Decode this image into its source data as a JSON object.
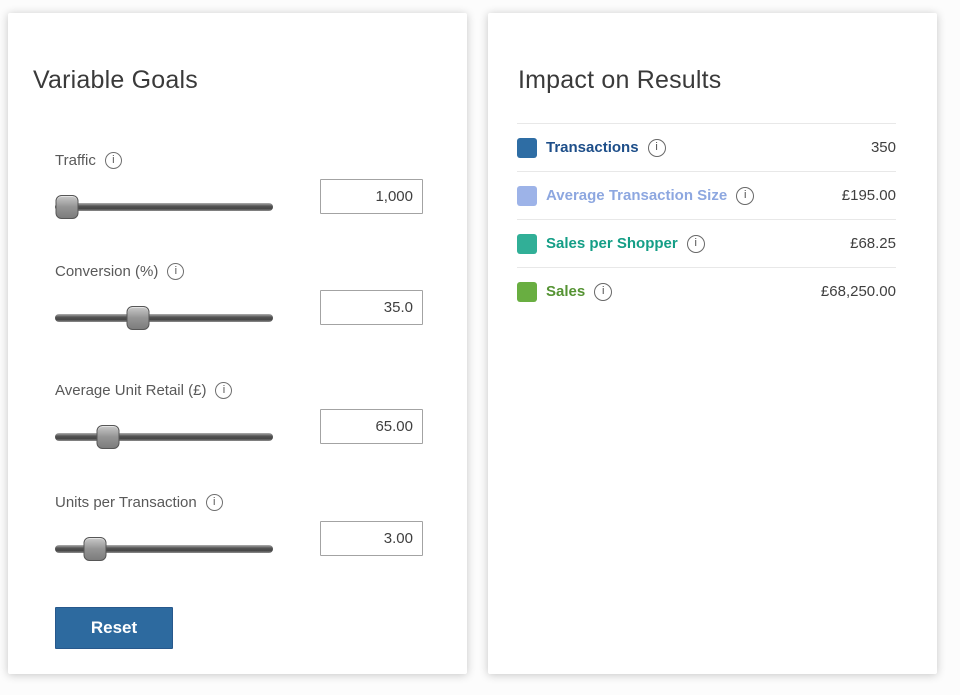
{
  "glyphs": {
    "info": "i"
  },
  "left_panel": {
    "title": "Variable Goals",
    "reset_label": "Reset",
    "sliders": [
      {
        "label": "Traffic",
        "value": "1,000",
        "handle_percent": 5.5
      },
      {
        "label": "Conversion (%)",
        "value": "35.0",
        "handle_percent": 38
      },
      {
        "label": "Average Unit Retail (£)",
        "value": "65.00",
        "handle_percent": 24.5
      },
      {
        "label": "Units per Transaction",
        "value": "3.00",
        "handle_percent": 18.5
      }
    ]
  },
  "right_panel": {
    "title": "Impact on Results",
    "rows": [
      {
        "label": "Transactions",
        "value": "350",
        "swatch_color": "#2e6da4",
        "label_color": "#1d4e89"
      },
      {
        "label": "Average Transaction Size",
        "value": "£195.00",
        "swatch_color": "#9db3e8",
        "label_color": "#8da7e0"
      },
      {
        "label": "Sales per Shopper",
        "value": "£68.25",
        "swatch_color": "#31af97",
        "label_color": "#149e86"
      },
      {
        "label": "Sales",
        "value": "£68,250.00",
        "swatch_color": "#69ae41",
        "label_color": "#559333"
      }
    ]
  },
  "colors": {
    "reset_button": "#2d6a9f",
    "value_text": "#3f3f3f"
  }
}
